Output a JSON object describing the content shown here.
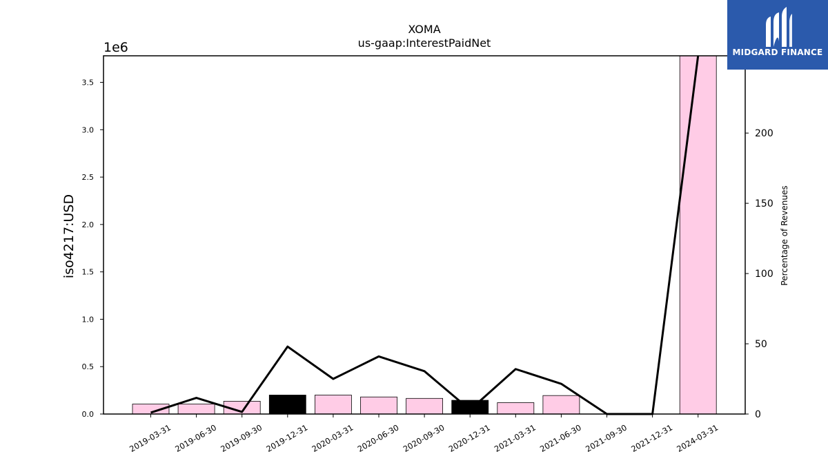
{
  "chart_data": {
    "type": "bar",
    "title": "XOMA",
    "subtitle": "us-gaap:InterestPaidNet",
    "ylabel": "iso4217:USD",
    "ylabel_right": "Percentage of Revenues",
    "y_offset_label": "1e6",
    "ylim": [
      0,
      3.78
    ],
    "y2lim": [
      0,
      255
    ],
    "y_ticks": [
      "0.0",
      "0.5",
      "1.0",
      "1.5",
      "2.0",
      "2.5",
      "3.0",
      "3.5"
    ],
    "y2_ticks": [
      "0",
      "50",
      "100",
      "150",
      "200"
    ],
    "categories": [
      "2019-03-31",
      "2019-06-30",
      "2019-09-30",
      "2019-12-31",
      "2020-03-31",
      "2020-06-30",
      "2020-09-30",
      "2020-12-31",
      "2021-03-31",
      "2021-06-30",
      "2021-09-30",
      "2021-12-31",
      "2024-03-31"
    ],
    "series": [
      {
        "type": "bar",
        "axis": "left",
        "unit": "millions USD",
        "values": [
          0.105,
          0.105,
          0.135,
          0.2,
          0.2,
          0.18,
          0.165,
          0.145,
          0.12,
          0.195,
          0,
          0,
          3.78
        ],
        "colors": [
          "#ffcce6",
          "#ffcce6",
          "#ffcce6",
          "#000000",
          "#ffcce6",
          "#ffcce6",
          "#ffcce6",
          "#000000",
          "#ffcce6",
          "#ffcce6",
          "#ffcce6",
          "#ffcce6",
          "#ffcce6"
        ]
      },
      {
        "type": "line",
        "axis": "right",
        "color": "#000000",
        "values": [
          1,
          11.5,
          1.5,
          48,
          25,
          41,
          30.5,
          3,
          32,
          21.5,
          0,
          0,
          255
        ]
      }
    ],
    "grid": false
  },
  "logo": {
    "text": "MIDGARD FINANCE",
    "background": "#2b5aac"
  }
}
